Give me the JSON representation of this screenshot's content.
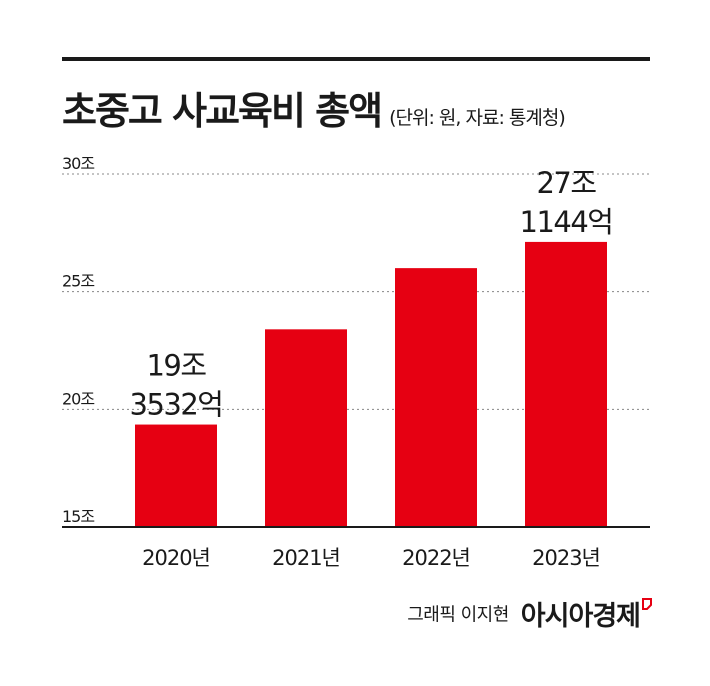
{
  "header": {
    "title": "초중고 사교육비 총액",
    "subtitle": "(단위: 원, 자료: 통계청)"
  },
  "footer": {
    "credit": "그래픽 이지현",
    "brand": "아시아경제"
  },
  "colors": {
    "bar": "#e60012",
    "text": "#1a1a1a",
    "grid": "#888888"
  },
  "chart_data": {
    "type": "bar",
    "title": "초중고 사교육비 총액",
    "subtitle": "(단위: 원, 자료: 통계청)",
    "categories": [
      "2020년",
      "2021년",
      "2022년",
      "2023년"
    ],
    "values": [
      19.3532,
      23.4,
      26.0,
      27.1144
    ],
    "ylim": [
      15,
      30
    ],
    "yticks": [
      {
        "value": 15,
        "label": "15조"
      },
      {
        "value": 20,
        "label": "20조"
      },
      {
        "value": 25,
        "label": "25조"
      },
      {
        "value": 30,
        "label": "30조"
      }
    ],
    "data_labels": [
      {
        "index": 0,
        "line1": "19조",
        "line2": "3532억"
      },
      {
        "index": 3,
        "line1": "27조",
        "line2": "1144억"
      }
    ],
    "grid": true,
    "legend": "none"
  }
}
